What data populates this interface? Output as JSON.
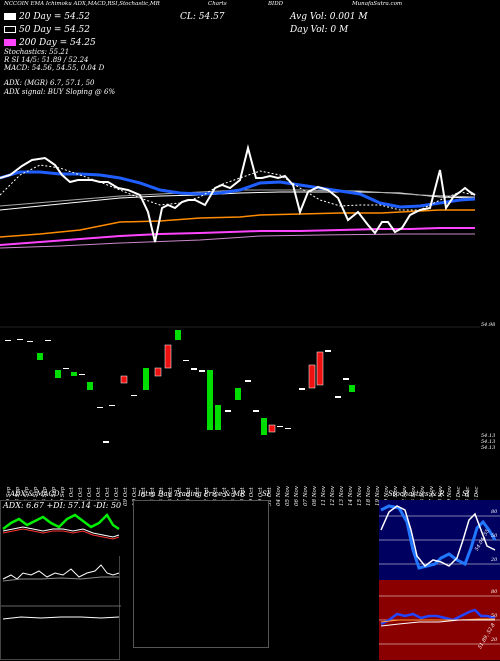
{
  "header": {
    "left_text": "NCCOIN EMA Ichimoku ADX,MACD,RSI,Stochastic,MR",
    "center_text": "Charts",
    "symbol_text": "BIDD",
    "right_text": "MunafaSutra.com"
  },
  "legend": {
    "ema20": "20 Day = 54.52",
    "ema50": "50 Day = 54.52",
    "ema200": "200 Day = 54.25",
    "close": "CL: 54.57",
    "avg_vol": "Avg Vol: 0.001 M",
    "day_vol": "Day Vol: 0   M",
    "stochastics": "Stochastics: 55.21",
    "r_values": "R                    SI 14/5: 51.89 / 52.24",
    "macd": "MACD: 54.56, 54.55, 0.04  D",
    "adx": "ADX:                          (MGR) 6.7, 57.1,  50",
    "adx_signal": "ADX  signal:                                    BUY Sloping @ 6%"
  },
  "colors": {
    "ema20": "#ffffff",
    "ema50": "#1f5fff",
    "ema200": "#ff8c00",
    "ichimoku": "#ff44ff",
    "up_candle": "#00dd00",
    "down_candle": "#ee1111"
  },
  "price_scale": {
    "top_label": "54.98",
    "bottom_label_1": "54.13",
    "bottom_label_2": "54.13",
    "bottom_label_3": "54.13"
  },
  "dates": [
    "20 Sep",
    "23 Sep",
    "24 Sep",
    "25 Sep",
    "26 Sep",
    "27 Sep",
    "30 Sep",
    "01 Oct",
    "02 Oct",
    "03 Oct",
    "04 Oct",
    "07 Oct",
    "08 Oct",
    "09 Oct",
    "10 Oct",
    "11 Oct",
    "14 Oct",
    "15 Oct",
    "16 Oct",
    "17 Oct",
    "18 Oct",
    "21 Oct",
    "22 Oct",
    "23 Oct",
    "24 Oct",
    "25 Oct",
    "28 Oct",
    "29 Oct",
    "30 Oct",
    "31 Oct",
    "04 Nov",
    "05 Nov",
    "06 Nov",
    "07 Nov",
    "08 Nov",
    "11 Nov",
    "12 Nov",
    "13 Nov",
    "14 Nov",
    "15 Nov",
    "18 Nov",
    "19 Nov",
    "20 Nov",
    "21 Nov",
    "22 Nov",
    "25 Nov",
    "26 Nov",
    "27 Nov",
    "28 Nov",
    "29 Nov",
    "02 Dec",
    "03 Dec",
    "04 Dec"
  ],
  "panels": {
    "adx_title": "ADX  & MACD",
    "adx_readout": "ADX: 6.67  +DI: 57.14  -DI: 50",
    "intraday_title": "Intra  Day Trading Price  & MR",
    "intraday_si": "SI",
    "stoch_title": "Stochastics & R",
    "stoch_si": "SI",
    "stoch_labels": [
      "80",
      "50",
      "20"
    ],
    "stoch_side": "54.04, 55",
    "rsi_labels": [
      "80",
      "50",
      "20"
    ],
    "rsi_side": "51.89, 52.8"
  }
}
